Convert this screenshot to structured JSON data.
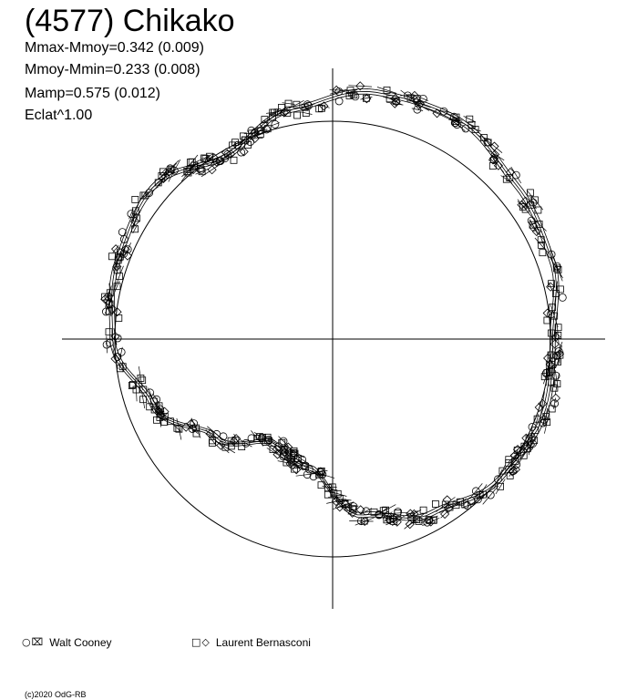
{
  "chart_data": {
    "type": "scatter",
    "title": "(4577) Chikako",
    "stats": {
      "mmax_mmoy": "Mmax-Mmoy=0.342 (0.009)",
      "mmoy_mmin": "Mmoy-Mmin=0.233 (0.008)",
      "mamp": "Mamp=0.575 (0.012)",
      "eclat": "Eclat^1.00"
    },
    "plot_style": "polar light curve",
    "axes": "crosshair through origin",
    "reference_circle_radius": 1.0,
    "curve_radius_samples": [
      {
        "angle_deg": 0,
        "r": 1.01
      },
      {
        "angle_deg": 20,
        "r": 1.07
      },
      {
        "angle_deg": 40,
        "r": 1.1
      },
      {
        "angle_deg": 60,
        "r": 1.16
      },
      {
        "angle_deg": 80,
        "r": 1.15
      },
      {
        "angle_deg": 100,
        "r": 1.07
      },
      {
        "angle_deg": 120,
        "r": 0.97
      },
      {
        "angle_deg": 140,
        "r": 1.08
      },
      {
        "angle_deg": 160,
        "r": 1.05
      },
      {
        "angle_deg": 180,
        "r": 1.01
      },
      {
        "angle_deg": 200,
        "r": 0.88
      },
      {
        "angle_deg": 220,
        "r": 0.7
      },
      {
        "angle_deg": 240,
        "r": 0.55
      },
      {
        "angle_deg": 260,
        "r": 0.6
      },
      {
        "angle_deg": 280,
        "r": 0.82
      },
      {
        "angle_deg": 300,
        "r": 0.92
      },
      {
        "angle_deg": 320,
        "r": 1.0
      },
      {
        "angle_deg": 340,
        "r": 1.03
      }
    ],
    "series": [
      {
        "name": "Walt Cooney",
        "markers": [
          "circle",
          "cross-square"
        ]
      },
      {
        "name": "Laurent Bernasconi",
        "markers": [
          "square",
          "diamond"
        ]
      }
    ]
  },
  "legend": [
    {
      "symbols": "○⌧",
      "label": "Walt Cooney"
    },
    {
      "symbols": "□◇",
      "label": "Laurent Bernasconi"
    }
  ],
  "copyright": "(c)2020 OdG-RB"
}
